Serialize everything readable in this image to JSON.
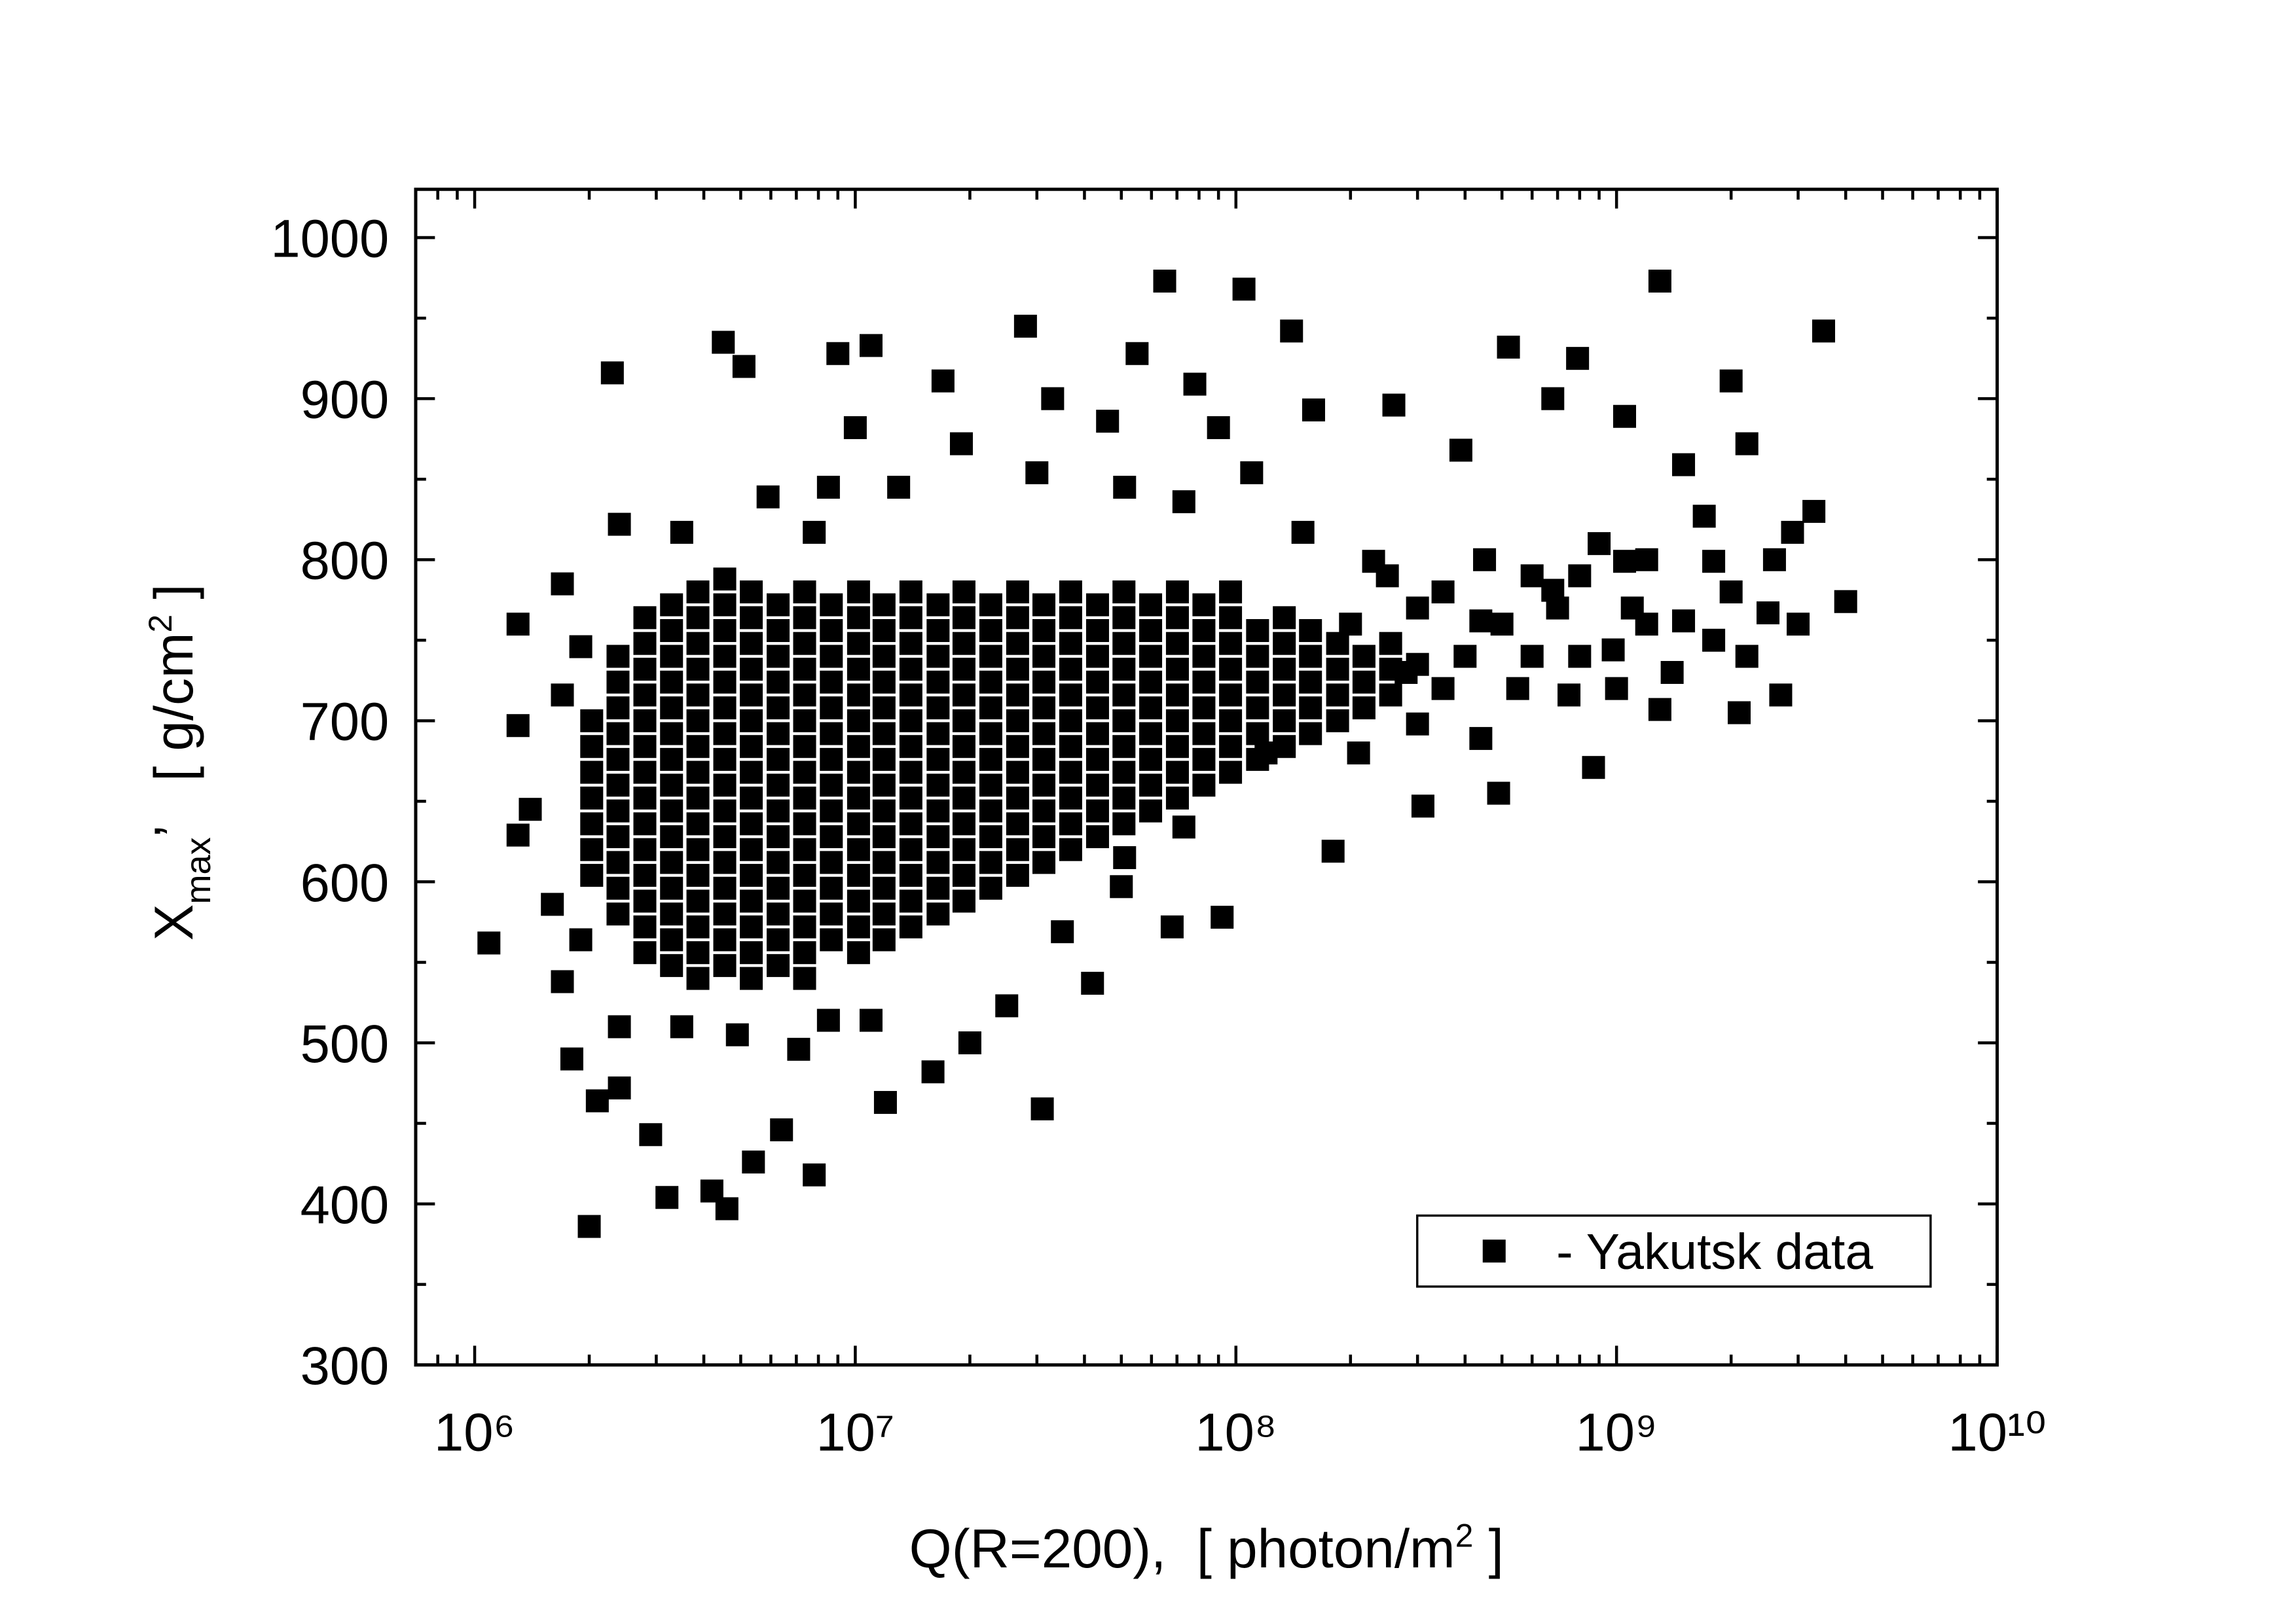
{
  "chart_data": {
    "type": "scatter",
    "x_label": [
      {
        "text": "Q(R=200),  [ photon/m"
      },
      {
        "text": "2",
        "script": "super"
      },
      {
        "text": " ]"
      }
    ],
    "y_label": [
      {
        "text": "X"
      },
      {
        "text": "max",
        "script": "sub"
      },
      {
        "text": "’   [ g/cm"
      },
      {
        "text": "2",
        "script": "super"
      },
      {
        "text": " ]"
      }
    ],
    "x_scale": "log",
    "xlim": [
      700000,
      10000000000
    ],
    "xticks": [
      {
        "value": 1000000,
        "label": "10⁶"
      },
      {
        "value": 10000000,
        "label": "10⁷"
      },
      {
        "value": 100000000,
        "label": "10⁸"
      },
      {
        "value": 1000000000,
        "label": "10⁹"
      },
      {
        "value": 10000000000,
        "label": "10¹⁰"
      }
    ],
    "ylim": [
      300,
      1030
    ],
    "yticks": [
      300,
      400,
      500,
      600,
      700,
      800,
      900,
      1000
    ],
    "minor_ticks": true,
    "legend": "lower right",
    "x": [
      1090000.0,
      1300000.0,
      1300000.0,
      1300000.0,
      1400000.0,
      1700000.0,
      1800000.0,
      2000000.0,
      2100000.0,
      2300000.0,
      2400000.0,
      2900000.0,
      3200000.0,
      4200000.0,
      4500000.0,
      4600000.0,
      5100000.0,
      5400000.0,
      6400000.0,
      7800000.0,
      9000000.0,
      11000000.0,
      31000000.0,
      12000000.0,
      28000000.0,
      65000000.0,
      105000000.0,
      140000000.0,
      78000000.0,
      55000000.0,
      1300000000.0,
      3500000000.0,
      2000000000.0,
      520000000.0,
      790000000.0,
      4000000000.0,
      3300000000.0,
      2700000000.0,
      2100000000.0,
      1300000000.0,
      870000000.0,
      490000000.0,
      310000000.0,
      180000000.0,
      92000000.0,
      68000000.0,
      50000000.0,
      42000000.0,
      1700000000.0,
      2200000000.0,
      1500000000.0,
      1050000000.0,
      680000000.0,
      390000000.0,
      260000000.0,
      160000000.0,
      90000000.0,
      46000000.0,
      33000000.0,
      17000000.0,
      10000000.0,
      5900000.0,
      3500000.0,
      2400000.0,
      1900000.0,
      1700000.0,
      1600000.0,
      1700000.0,
      1900000.0,
      2400000.0,
      3500000.0,
      4900000.0,
      7100000.0,
      8500000.0,
      11000000.0,
      16000000.0,
      20000000.0,
      25000000.0,
      35000000.0,
      51000000.0,
      73000000.0,
      120000000.0,
      210000000.0,
      300000000.0,
      440000000.0,
      750000000.0,
      980000000.0,
      1500000000.0,
      2500000000.0,
      2900000000.0,
      1800000000.0,
      1050000000.0,
      680000000.0,
      440000000.0,
      300000000.0,
      230000000.0,
      150000000.0,
      110000000.0,
      73000000.0,
      51000000.0,
      30000000.0,
      19000000.0,
      13000000.0,
      8500000.0,
      7800000.0,
      1200000000.0,
      800000000.0,
      500000000.0,
      350000000.0,
      600000000.0,
      1000000000.0,
      2000000000.0,
      700000000.0,
      400000000.0,
      300000000.0,
      250000000.0,
      1800000000.0,
      1200000000.0,
      3000000000.0,
      900000000.0,
      600000000.0,
      450000000.0,
      200000000.0,
      280000000.0,
      350000000.0,
      550000000.0,
      1400000000.0,
      2200000000.0,
      2600000000.0,
      800000000.0,
      1100000000.0,
      2030000.0,
      2030000.0,
      2030000.0,
      2030000.0,
      2030000.0,
      2030000.0,
      2030000.0,
      2380000.0,
      2380000.0,
      2380000.0,
      2380000.0,
      2380000.0,
      2380000.0,
      2380000.0,
      2380000.0,
      2380000.0,
      2380000.0,
      2380000.0,
      2800000.0,
      2800000.0,
      2800000.0,
      2800000.0,
      2800000.0,
      2800000.0,
      2800000.0,
      2800000.0,
      2800000.0,
      2800000.0,
      2800000.0,
      2800000.0,
      2800000.0,
      2800000.0,
      3290000.0,
      3290000.0,
      3290000.0,
      3290000.0,
      3290000.0,
      3290000.0,
      3290000.0,
      3290000.0,
      3290000.0,
      3290000.0,
      3290000.0,
      3290000.0,
      3290000.0,
      3290000.0,
      3290000.0,
      3860000.0,
      3860000.0,
      3860000.0,
      3860000.0,
      3860000.0,
      3860000.0,
      3860000.0,
      3860000.0,
      3860000.0,
      3860000.0,
      3860000.0,
      3860000.0,
      3860000.0,
      3860000.0,
      3860000.0,
      3860000.0,
      4540000.0,
      4540000.0,
      4540000.0,
      4540000.0,
      4540000.0,
      4540000.0,
      4540000.0,
      4540000.0,
      4540000.0,
      4540000.0,
      4540000.0,
      4540000.0,
      4540000.0,
      4540000.0,
      4540000.0,
      4540000.0,
      5330000.0,
      5330000.0,
      5330000.0,
      5330000.0,
      5330000.0,
      5330000.0,
      5330000.0,
      5330000.0,
      5330000.0,
      5330000.0,
      5330000.0,
      5330000.0,
      5330000.0,
      5330000.0,
      5330000.0,
      5330000.0,
      6270000.0,
      6270000.0,
      6270000.0,
      6270000.0,
      6270000.0,
      6270000.0,
      6270000.0,
      6270000.0,
      6270000.0,
      6270000.0,
      6270000.0,
      6270000.0,
      6270000.0,
      6270000.0,
      6270000.0,
      7360000.0,
      7360000.0,
      7360000.0,
      7360000.0,
      7360000.0,
      7360000.0,
      7360000.0,
      7360000.0,
      7360000.0,
      7360000.0,
      7360000.0,
      7360000.0,
      7360000.0,
      7360000.0,
      7360000.0,
      7360000.0,
      8650000.0,
      8650000.0,
      8650000.0,
      8650000.0,
      8650000.0,
      8650000.0,
      8650000.0,
      8650000.0,
      8650000.0,
      8650000.0,
      8650000.0,
      8650000.0,
      8650000.0,
      8650000.0,
      10200000.0,
      10200000.0,
      10200000.0,
      10200000.0,
      10200000.0,
      10200000.0,
      10200000.0,
      10200000.0,
      10200000.0,
      10200000.0,
      10200000.0,
      10200000.0,
      10200000.0,
      10200000.0,
      10200000.0,
      11900000.0,
      11900000.0,
      11900000.0,
      11900000.0,
      11900000.0,
      11900000.0,
      11900000.0,
      11900000.0,
      11900000.0,
      11900000.0,
      11900000.0,
      11900000.0,
      11900000.0,
      11900000.0,
      14000000.0,
      14000000.0,
      14000000.0,
      14000000.0,
      14000000.0,
      14000000.0,
      14000000.0,
      14000000.0,
      14000000.0,
      14000000.0,
      14000000.0,
      14000000.0,
      14000000.0,
      14000000.0,
      16500000.0,
      16500000.0,
      16500000.0,
      16500000.0,
      16500000.0,
      16500000.0,
      16500000.0,
      16500000.0,
      16500000.0,
      16500000.0,
      16500000.0,
      16500000.0,
      16500000.0,
      19300000.0,
      19300000.0,
      19300000.0,
      19300000.0,
      19300000.0,
      19300000.0,
      19300000.0,
      19300000.0,
      19300000.0,
      19300000.0,
      19300000.0,
      19300000.0,
      19300000.0,
      22700000.0,
      22700000.0,
      22700000.0,
      22700000.0,
      22700000.0,
      22700000.0,
      22700000.0,
      22700000.0,
      22700000.0,
      22700000.0,
      22700000.0,
      22700000.0,
      26700000.0,
      26700000.0,
      26700000.0,
      26700000.0,
      26700000.0,
      26700000.0,
      26700000.0,
      26700000.0,
      26700000.0,
      26700000.0,
      26700000.0,
      26700000.0,
      31300000.0,
      31300000.0,
      31300000.0,
      31300000.0,
      31300000.0,
      31300000.0,
      31300000.0,
      31300000.0,
      31300000.0,
      31300000.0,
      31300000.0,
      36800000.0,
      36800000.0,
      36800000.0,
      36800000.0,
      36800000.0,
      36800000.0,
      36800000.0,
      36800000.0,
      36800000.0,
      36800000.0,
      36800000.0,
      43300000.0,
      43300000.0,
      43300000.0,
      43300000.0,
      43300000.0,
      43300000.0,
      43300000.0,
      43300000.0,
      43300000.0,
      43300000.0,
      50800000.0,
      50800000.0,
      50800000.0,
      50800000.0,
      50800000.0,
      50800000.0,
      50800000.0,
      50800000.0,
      50800000.0,
      50800000.0,
      59700000.0,
      59700000.0,
      59700000.0,
      59700000.0,
      59700000.0,
      59700000.0,
      59700000.0,
      59700000.0,
      59700000.0,
      70200000.0,
      70200000.0,
      70200000.0,
      70200000.0,
      70200000.0,
      70200000.0,
      70200000.0,
      70200000.0,
      70200000.0,
      82400000.0,
      82400000.0,
      82400000.0,
      82400000.0,
      82400000.0,
      82400000.0,
      82400000.0,
      82400000.0,
      96800000.0,
      96800000.0,
      96800000.0,
      96800000.0,
      96800000.0,
      96800000.0,
      96800000.0,
      96800000.0,
      114000000.0,
      114000000.0,
      114000000.0,
      114000000.0,
      114000000.0,
      114000000.0,
      134000000.0,
      134000000.0,
      134000000.0,
      134000000.0,
      134000000.0,
      134000000.0,
      157000000.0,
      157000000.0,
      157000000.0,
      157000000.0,
      157000000.0,
      185000000.0,
      185000000.0,
      185000000.0,
      185000000.0,
      217000000.0,
      217000000.0,
      217000000.0,
      255000000.0,
      255000000.0,
      255000000.0
    ],
    "series": [
      {
        "name": "- Yakutsk data",
        "color": "#000000",
        "marker": "square",
        "values": [
          562,
          760,
          697,
          629,
          645,
          785,
          490,
          386,
          464,
          916,
          472,
          443,
          404,
          408,
          935,
          397,
          920,
          426,
          446,
          418,
          928,
          933,
          459,
          463,
          945,
          973,
          968,
          942,
          909,
          928,
          973,
          942,
          911,
          932,
          925,
          774,
          830,
          716,
          705,
          707,
          671,
          655,
          647,
          619,
          578,
          572,
          597,
          537,
          827,
          872,
          859,
          889,
          900,
          868,
          896,
          893,
          882,
          886,
          900,
          911,
          882,
          839,
          817,
          822,
          746,
          716,
          586,
          538,
          564,
          510,
          510,
          505,
          496,
          514,
          514,
          482,
          500,
          523,
          569,
          615,
          634,
          680,
          680,
          698,
          689,
          716,
          744,
          762,
          767,
          817,
          799,
          799,
          781,
          762,
          735,
          799,
          817,
          854,
          836,
          845,
          854,
          872,
          845,
          845,
          817,
          760,
          740,
          760,
          720,
          790,
          720,
          780,
          770,
          740,
          770,
          790,
          750,
          800,
          760,
          810,
          740,
          800,
          760,
          730,
          780,
          720,
          730,
          740,
          800,
          790,
          770,
          604,
          620,
          636,
          652,
          668,
          684,
          700,
          580,
          596,
          612,
          628,
          644,
          660,
          676,
          692,
          708,
          724,
          740,
          556,
          572,
          588,
          604,
          620,
          636,
          652,
          668,
          684,
          700,
          716,
          732,
          748,
          764,
          548,
          564,
          580,
          596,
          612,
          628,
          644,
          660,
          676,
          692,
          708,
          724,
          740,
          756,
          772,
          540,
          556,
          572,
          588,
          604,
          620,
          636,
          652,
          668,
          684,
          700,
          716,
          732,
          748,
          764,
          780,
          548,
          564,
          580,
          596,
          612,
          628,
          644,
          660,
          676,
          692,
          708,
          724,
          740,
          756,
          772,
          788,
          540,
          556,
          572,
          588,
          604,
          620,
          636,
          652,
          668,
          684,
          700,
          716,
          732,
          748,
          764,
          780,
          548,
          564,
          580,
          596,
          612,
          628,
          644,
          660,
          676,
          692,
          708,
          724,
          740,
          756,
          772,
          540,
          556,
          572,
          588,
          604,
          620,
          636,
          652,
          668,
          684,
          700,
          716,
          732,
          748,
          764,
          780,
          564,
          580,
          596,
          612,
          628,
          644,
          660,
          676,
          692,
          708,
          724,
          740,
          756,
          772,
          556,
          572,
          588,
          604,
          620,
          636,
          652,
          668,
          684,
          700,
          716,
          732,
          748,
          764,
          780,
          564,
          580,
          596,
          612,
          628,
          644,
          660,
          676,
          692,
          708,
          724,
          740,
          756,
          772,
          572,
          588,
          604,
          620,
          636,
          652,
          668,
          684,
          700,
          716,
          732,
          748,
          764,
          780,
          580,
          596,
          612,
          628,
          644,
          660,
          676,
          692,
          708,
          724,
          740,
          756,
          772,
          588,
          604,
          620,
          636,
          652,
          668,
          684,
          700,
          716,
          732,
          748,
          764,
          780,
          596,
          612,
          628,
          644,
          660,
          676,
          692,
          708,
          724,
          740,
          756,
          772,
          604,
          620,
          636,
          652,
          668,
          684,
          700,
          716,
          732,
          748,
          764,
          780,
          612,
          628,
          644,
          660,
          676,
          692,
          708,
          724,
          740,
          756,
          772,
          620,
          636,
          652,
          668,
          684,
          700,
          716,
          732,
          748,
          764,
          780,
          628,
          644,
          660,
          676,
          692,
          708,
          724,
          740,
          756,
          772,
          636,
          652,
          668,
          684,
          700,
          716,
          732,
          748,
          764,
          780,
          644,
          660,
          676,
          692,
          708,
          724,
          740,
          756,
          772,
          652,
          668,
          684,
          700,
          716,
          732,
          748,
          764,
          780,
          660,
          676,
          692,
          708,
          724,
          740,
          756,
          772,
          668,
          684,
          700,
          716,
          732,
          748,
          764,
          780,
          676,
          692,
          708,
          724,
          740,
          756,
          684,
          700,
          716,
          732,
          748,
          764,
          692,
          708,
          724,
          740,
          756,
          700,
          716,
          732,
          748,
          708,
          724,
          740,
          716,
          732,
          748
        ]
      }
    ]
  }
}
